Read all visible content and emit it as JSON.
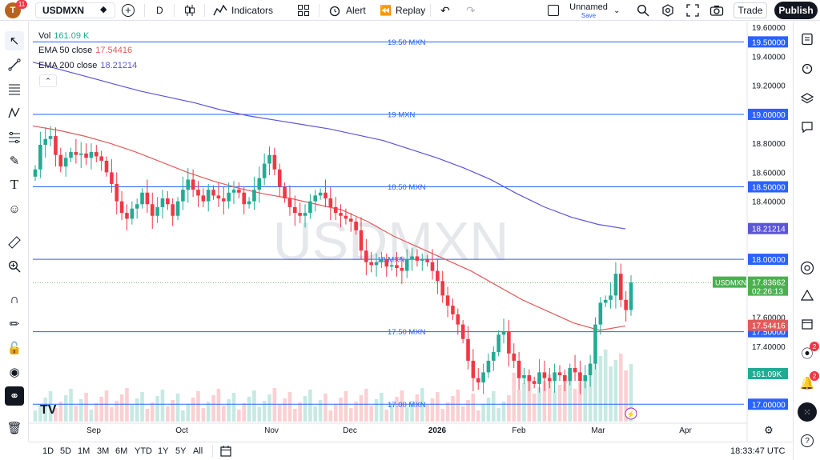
{
  "topbar": {
    "avatar_letter": "T",
    "avatar_badge": "11",
    "symbol": "USDMXN",
    "interval": "D",
    "indicators_label": "Indicators",
    "alert_label": "Alert",
    "replay_label": "Replay",
    "layout_name": "Unnamed",
    "layout_status": "Save",
    "trade_label": "Trade",
    "publish_label": "Publish"
  },
  "legend": {
    "vol_label": "Vol",
    "vol_value": "161.09 K",
    "ema50_label": "EMA 50 close",
    "ema50_value": "17.54416",
    "ema200_label": "EMA 200 close",
    "ema200_value": "18.21214"
  },
  "right_badges": {
    "alerts": "2",
    "notifications": "2"
  },
  "bottom": {
    "ranges": [
      "1D",
      "5D",
      "1M",
      "3M",
      "6M",
      "YTD",
      "1Y",
      "5Y",
      "All"
    ],
    "clock": "18:33:47 UTC"
  },
  "colors": {
    "up": "#22ab94",
    "down": "#f23645",
    "ema50": "#e05b5b",
    "ema200": "#5b55d8",
    "hline": "#2962ff",
    "price_label": "#4caf50",
    "watermark": "#e6e7ea"
  },
  "chart_data": {
    "type": "candlestick",
    "watermark": "USDMXN",
    "x_labels": [
      "Sep",
      "Oct",
      "Nov",
      "Dec",
      "2026",
      "Feb",
      "Mar",
      "Apr"
    ],
    "y_ticks": [
      19.6,
      19.4,
      19.2,
      18.8,
      18.6,
      18.4,
      17.6,
      17.4
    ],
    "ylim": [
      16.88,
      19.64
    ],
    "horizontal_lines": [
      {
        "price": 19.5,
        "text": "19.50 MXN",
        "tag": "19.50000"
      },
      {
        "price": 19.0,
        "text": "19 MXN",
        "tag": "19.00000"
      },
      {
        "price": 18.5,
        "text": "18.50 MXN",
        "tag": "18.50000"
      },
      {
        "price": 18.0,
        "text": "18 MXN",
        "tag": "18.00000"
      },
      {
        "price": 17.5,
        "text": "17.50 MXN",
        "tag": "17.50000"
      },
      {
        "price": 17.0,
        "text": "17.00 MXN",
        "tag": "17.00000"
      }
    ],
    "last_price": {
      "symbol": "USDMXN",
      "value": "17.83662",
      "countdown": "02:26:13",
      "price": 17.837
    },
    "ema50": {
      "name": "EMA 50 close",
      "last": 17.544,
      "tag": "17.54416",
      "values": [
        18.92,
        18.89,
        18.85,
        18.8,
        18.74,
        18.67,
        18.6,
        18.54,
        18.49,
        18.45,
        18.42,
        18.38,
        18.34,
        18.26,
        18.16,
        18.08,
        18.0,
        17.92,
        17.82,
        17.72,
        17.64,
        17.56,
        17.51,
        17.54
      ]
    },
    "ema200": {
      "name": "EMA 200 close",
      "last": 18.212,
      "tag": "18.21214",
      "values": [
        19.36,
        19.31,
        19.26,
        19.21,
        19.16,
        19.12,
        19.08,
        19.03,
        18.99,
        18.96,
        18.93,
        18.9,
        18.86,
        18.82,
        18.76,
        18.7,
        18.63,
        18.55,
        18.45,
        18.36,
        18.29,
        18.24,
        18.21
      ]
    },
    "closes": [
      18.62,
      18.79,
      18.83,
      18.85,
      18.72,
      18.64,
      18.7,
      18.74,
      18.72,
      18.73,
      18.7,
      18.74,
      18.71,
      18.68,
      18.6,
      18.52,
      18.4,
      18.32,
      18.28,
      18.35,
      18.38,
      18.46,
      18.38,
      18.3,
      18.36,
      18.42,
      18.38,
      18.3,
      18.4,
      18.48,
      18.55,
      18.48,
      18.44,
      18.4,
      18.48,
      18.44,
      18.42,
      18.4,
      18.46,
      18.48,
      18.46,
      18.38,
      18.4,
      18.48,
      18.56,
      18.66,
      18.72,
      18.62,
      18.5,
      18.42,
      18.36,
      18.32,
      18.3,
      18.32,
      18.4,
      18.44,
      18.46,
      18.42,
      18.36,
      18.32,
      18.3,
      18.28,
      18.26,
      18.2,
      18.06,
      17.98,
      17.96,
      17.98,
      18.0,
      17.95,
      17.96,
      17.94,
      17.92,
      18.0,
      18.02,
      17.99,
      18.0,
      17.98,
      17.92,
      17.85,
      17.75,
      17.68,
      17.62,
      17.55,
      17.45,
      17.3,
      17.18,
      17.15,
      17.22,
      17.3,
      17.36,
      17.48,
      17.5,
      17.35,
      17.3,
      17.18,
      17.2,
      17.16,
      17.14,
      17.22,
      17.18,
      17.16,
      17.22,
      17.2,
      17.16,
      17.25,
      17.22,
      17.16,
      17.2,
      17.28,
      17.55,
      17.7,
      17.72,
      17.75,
      17.9,
      17.72,
      17.65,
      17.84
    ],
    "volume_note": "Vol 161.09 K"
  }
}
